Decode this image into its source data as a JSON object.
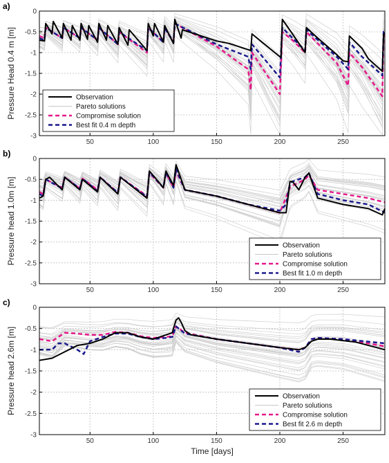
{
  "chart_data": [
    {
      "type": "line",
      "label": "a)",
      "xlabel": "",
      "ylabel": "Pressure Head 0.4 m  [m]",
      "xlim": [
        10,
        283
      ],
      "ylim": [
        -3,
        0
      ],
      "xticks": [
        50,
        100,
        150,
        200,
        250
      ],
      "yticks": [
        0,
        -0.5,
        -1,
        -1.5,
        -2,
        -2.5,
        -3
      ],
      "grid": true,
      "legend_position": "bottom-left",
      "legend": [
        "Observation",
        "Pareto solutions",
        "Compromise solution",
        "Best fit 0.4 m depth"
      ],
      "colors": {
        "observation": "#000000",
        "pareto": "#c8c8c8",
        "compromise": "#e5198a",
        "bestfit": "#1a1a8c"
      },
      "series": [
        {
          "name": "Observation",
          "x": [
            10,
            14,
            15,
            20,
            21,
            28,
            29,
            35,
            36,
            42,
            43,
            48,
            49,
            56,
            57,
            63,
            64,
            72,
            73,
            80,
            81,
            95,
            96,
            100,
            101,
            108,
            109,
            116,
            117,
            122,
            123,
            150,
            160,
            175,
            177,
            178,
            200,
            201,
            202,
            210,
            220,
            221,
            230,
            245,
            250,
            254,
            255,
            265,
            270,
            281,
            282,
            283
          ],
          "y": [
            -0.7,
            -0.72,
            -0.3,
            -0.55,
            -0.25,
            -0.65,
            -0.3,
            -0.7,
            -0.35,
            -0.7,
            -0.3,
            -0.68,
            -0.35,
            -0.75,
            -0.3,
            -0.7,
            -0.35,
            -0.8,
            -0.4,
            -0.82,
            -0.45,
            -0.95,
            -0.3,
            -0.6,
            -0.3,
            -0.75,
            -0.35,
            -0.78,
            -0.2,
            -0.65,
            -0.45,
            -0.72,
            -0.78,
            -0.93,
            -0.95,
            -0.55,
            -1.1,
            -1.12,
            -0.2,
            -0.55,
            -1.0,
            -0.4,
            -0.65,
            -1.05,
            -1.2,
            -1.22,
            -0.6,
            -0.9,
            -1.15,
            -1.45,
            -0.55,
            -0.55
          ]
        },
        {
          "name": "Compromise solution",
          "x": [
            10,
            14,
            15,
            28,
            29,
            42,
            43,
            56,
            57,
            72,
            73,
            95,
            96,
            108,
            109,
            116,
            117,
            150,
            175,
            177,
            178,
            200,
            202,
            210,
            220,
            221,
            245,
            254,
            255,
            265,
            281,
            282,
            283
          ],
          "y": [
            -0.6,
            -0.65,
            -0.4,
            -0.65,
            -0.4,
            -0.65,
            -0.4,
            -0.7,
            -0.4,
            -0.8,
            -0.5,
            -1.0,
            -0.4,
            -0.75,
            -0.4,
            -0.75,
            -0.3,
            -0.85,
            -1.4,
            -1.9,
            -1.0,
            -2.0,
            -0.5,
            -0.7,
            -1.0,
            -0.5,
            -1.25,
            -1.8,
            -1.0,
            -1.35,
            -2.05,
            -0.6,
            -0.6
          ]
        },
        {
          "name": "Best fit 0.4 m depth",
          "x": [
            10,
            14,
            15,
            28,
            29,
            42,
            43,
            56,
            57,
            72,
            73,
            95,
            96,
            108,
            109,
            116,
            117,
            150,
            175,
            177,
            178,
            200,
            202,
            210,
            220,
            221,
            245,
            254,
            255,
            265,
            281,
            282,
            283
          ],
          "y": [
            -0.65,
            -0.7,
            -0.4,
            -0.65,
            -0.4,
            -0.65,
            -0.4,
            -0.7,
            -0.4,
            -0.8,
            -0.5,
            -0.95,
            -0.4,
            -0.75,
            -0.4,
            -0.75,
            -0.3,
            -0.8,
            -1.1,
            -1.4,
            -0.8,
            -1.6,
            -0.4,
            -0.65,
            -0.95,
            -0.45,
            -1.1,
            -1.4,
            -0.75,
            -1.1,
            -1.55,
            -0.5,
            -0.5
          ]
        }
      ]
    },
    {
      "type": "line",
      "label": "b)",
      "xlabel": "",
      "ylabel": "Pressure head 1.0m [m]",
      "xlim": [
        10,
        283
      ],
      "ylim": [
        -3,
        0
      ],
      "xticks": [
        50,
        100,
        150,
        200,
        250
      ],
      "yticks": [
        0,
        -0.5,
        -1,
        -1.5,
        -2,
        -2.5,
        -3
      ],
      "grid": true,
      "legend_position": "bottom-right",
      "legend": [
        "Observation",
        "Pareto solutions",
        "Compromise solution",
        "Best fit 1.0 m depth"
      ],
      "colors": {
        "observation": "#000000",
        "pareto": "#c8c8c8",
        "compromise": "#e5198a",
        "bestfit": "#1a1a8c"
      },
      "series": [
        {
          "name": "Observation",
          "x": [
            10,
            13,
            15,
            18,
            28,
            30,
            42,
            44,
            56,
            58,
            72,
            74,
            95,
            97,
            108,
            110,
            116,
            118,
            125,
            150,
            175,
            200,
            205,
            208,
            210,
            215,
            220,
            223,
            230,
            250,
            270,
            281,
            283
          ],
          "y": [
            -0.95,
            -0.9,
            -0.5,
            -0.45,
            -0.75,
            -0.45,
            -0.75,
            -0.5,
            -0.8,
            -0.45,
            -0.85,
            -0.45,
            -0.95,
            -0.3,
            -0.7,
            -0.3,
            -0.65,
            -0.15,
            -0.75,
            -0.9,
            -1.1,
            -1.3,
            -1.3,
            -0.55,
            -0.55,
            -0.75,
            -0.45,
            -0.35,
            -0.95,
            -1.1,
            -1.2,
            -1.35,
            -1.2
          ]
        },
        {
          "name": "Compromise solution",
          "x": [
            10,
            13,
            15,
            28,
            30,
            42,
            44,
            56,
            58,
            72,
            74,
            95,
            97,
            108,
            110,
            116,
            118,
            125,
            150,
            175,
            200,
            208,
            210,
            220,
            223,
            230,
            250,
            270,
            283
          ],
          "y": [
            -0.8,
            -0.85,
            -0.5,
            -0.7,
            -0.45,
            -0.72,
            -0.48,
            -0.75,
            -0.45,
            -0.82,
            -0.45,
            -0.9,
            -0.35,
            -0.7,
            -0.35,
            -0.7,
            -0.3,
            -0.75,
            -0.9,
            -1.1,
            -1.3,
            -0.7,
            -0.65,
            -0.5,
            -0.4,
            -0.75,
            -0.85,
            -0.95,
            -1.05
          ]
        },
        {
          "name": "Best fit 1.0 m depth",
          "x": [
            10,
            13,
            15,
            28,
            30,
            42,
            44,
            56,
            58,
            72,
            74,
            95,
            97,
            108,
            110,
            116,
            118,
            125,
            150,
            175,
            200,
            205,
            208,
            210,
            220,
            223,
            230,
            250,
            270,
            283
          ],
          "y": [
            -0.85,
            -0.9,
            -0.5,
            -0.72,
            -0.45,
            -0.72,
            -0.48,
            -0.78,
            -0.45,
            -0.82,
            -0.45,
            -0.92,
            -0.33,
            -0.7,
            -0.33,
            -0.7,
            -0.25,
            -0.75,
            -0.9,
            -1.1,
            -1.25,
            -1.1,
            -0.6,
            -0.55,
            -0.45,
            -0.35,
            -0.85,
            -1.0,
            -1.1,
            -1.3
          ]
        }
      ]
    },
    {
      "type": "line",
      "label": "c)",
      "xlabel": "Time [days]",
      "ylabel": "Pressure head 2.6m [m]",
      "xlim": [
        10,
        283
      ],
      "ylim": [
        -3,
        0
      ],
      "xticks": [
        50,
        100,
        150,
        200,
        250
      ],
      "yticks": [
        0,
        -0.5,
        -1,
        -1.5,
        -2,
        -2.5,
        -3
      ],
      "grid": true,
      "legend_position": "bottom-right",
      "legend": [
        "Observation",
        "Pareto solutions",
        "Compromise solution",
        "Best fit 2.6 m depth"
      ],
      "colors": {
        "observation": "#000000",
        "pareto": "#c8c8c8",
        "compromise": "#e5198a",
        "bestfit": "#1a1a8c"
      },
      "series": [
        {
          "name": "Observation",
          "x": [
            10,
            20,
            30,
            40,
            50,
            60,
            70,
            80,
            90,
            100,
            110,
            115,
            118,
            120,
            122,
            125,
            130,
            150,
            175,
            200,
            215,
            220,
            225,
            230,
            240,
            260,
            283
          ],
          "y": [
            -1.25,
            -1.2,
            -1.05,
            -0.9,
            -0.85,
            -0.75,
            -0.6,
            -0.6,
            -0.7,
            -0.75,
            -0.65,
            -0.6,
            -0.3,
            -0.25,
            -0.35,
            -0.55,
            -0.65,
            -0.75,
            -0.85,
            -0.95,
            -1.0,
            -0.95,
            -0.8,
            -0.75,
            -0.75,
            -0.82,
            -1.0
          ]
        },
        {
          "name": "Compromise solution",
          "x": [
            10,
            20,
            25,
            30,
            40,
            50,
            60,
            70,
            80,
            90,
            100,
            110,
            115,
            118,
            125,
            150,
            175,
            200,
            215,
            220,
            225,
            230,
            250,
            283
          ],
          "y": [
            -0.75,
            -0.8,
            -0.7,
            -0.6,
            -0.62,
            -0.65,
            -0.65,
            -0.58,
            -0.6,
            -0.68,
            -0.72,
            -0.7,
            -0.68,
            -0.45,
            -0.6,
            -0.75,
            -0.85,
            -0.95,
            -1.0,
            -0.95,
            -0.75,
            -0.72,
            -0.75,
            -0.92
          ]
        },
        {
          "name": "Best fit 2.6 m depth",
          "x": [
            10,
            20,
            25,
            30,
            40,
            45,
            50,
            60,
            70,
            80,
            90,
            100,
            110,
            115,
            118,
            125,
            150,
            175,
            200,
            215,
            220,
            225,
            230,
            250,
            283
          ],
          "y": [
            -1.0,
            -1.0,
            -0.85,
            -0.85,
            -1.0,
            -1.1,
            -0.8,
            -0.7,
            -0.62,
            -0.62,
            -0.7,
            -0.75,
            -0.72,
            -0.7,
            -0.45,
            -0.62,
            -0.75,
            -0.85,
            -0.95,
            -1.05,
            -0.95,
            -0.75,
            -0.72,
            -0.75,
            -0.85
          ]
        }
      ]
    }
  ]
}
